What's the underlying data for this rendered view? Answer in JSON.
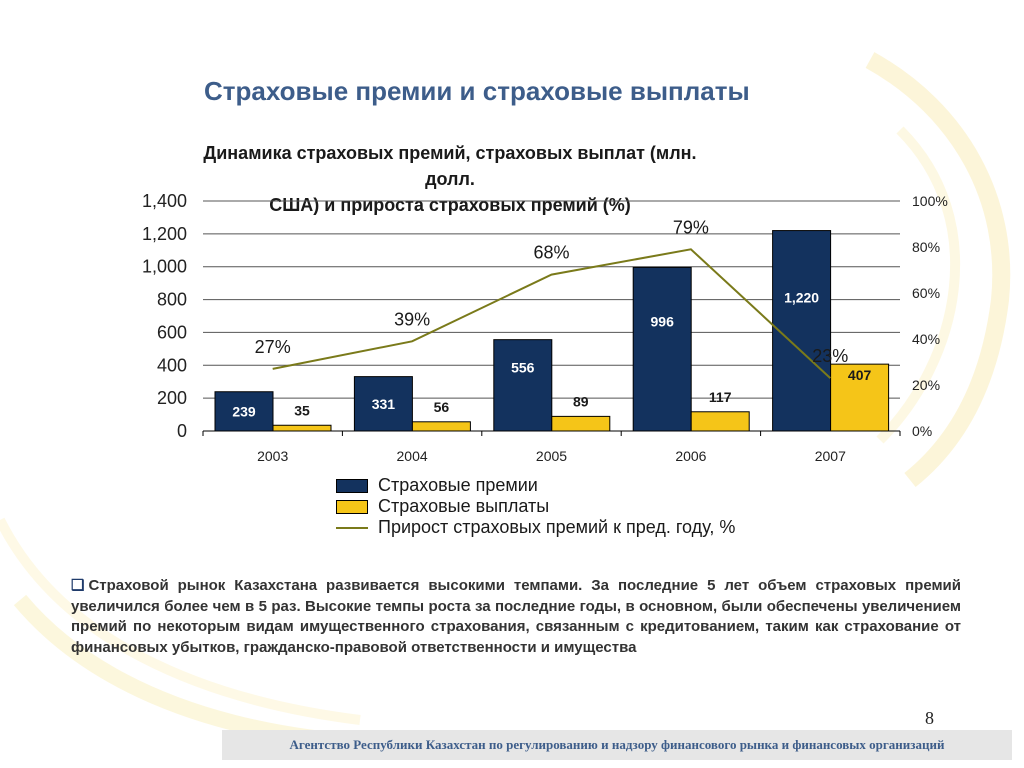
{
  "slide": {
    "title": "Страховые премии и страховые выплаты",
    "page_number": "8",
    "footer": "Агентство Республики Казахстан по регулированию и надзору финансового рынка и финансовых организаций",
    "note_bullet": "❑",
    "note": "Страховой рынок Казахстана развивается высокими темпами. За последние 5 лет объем страховых премий увеличился более чем в 5 раз. Высокие темпы роста за последние годы, в основном, были обеспечены увеличением премий по некоторым видам имущественного страхования, связанным с кредитованием, таким как страхование от финансовых убытков, гражданско-правовой ответственности и имущества"
  },
  "colors": {
    "premiums": "#13325e",
    "payouts": "#f5c518",
    "growth": "#7a7a1a",
    "title": "#3d5d8a"
  },
  "chart_data": {
    "type": "bar",
    "title": "Динамика страховых премий, страховых выплат (млн. долл. США) и прироста страховых премий (%)",
    "title_lines": [
      "Динамика страховых премий, страховых выплат (млн. долл.",
      "США) и прироста страховых премий (%)"
    ],
    "categories": [
      "2003",
      "2004",
      "2005",
      "2006",
      "2007"
    ],
    "series": [
      {
        "name": "Страховые премии",
        "type": "bar",
        "values": [
          239,
          331,
          556,
          996,
          1220
        ],
        "labels": [
          "239",
          "331",
          "556",
          "996",
          "1,220"
        ]
      },
      {
        "name": "Страховые выплаты",
        "type": "bar",
        "values": [
          35,
          56,
          89,
          117,
          407
        ],
        "labels": [
          "35",
          "56",
          "89",
          "117",
          "407"
        ]
      },
      {
        "name": "Прирост страховых премий к пред. году, %",
        "type": "line",
        "axis": "right",
        "values": [
          27,
          39,
          68,
          79,
          23
        ],
        "labels": [
          "27%",
          "39%",
          "68%",
          "79%",
          "23%"
        ]
      }
    ],
    "ylim": [
      0,
      1400
    ],
    "y_ticks": [
      "0",
      "200",
      "400",
      "600",
      "800",
      "1,000",
      "1,200",
      "1,400"
    ],
    "y2lim": [
      0,
      100
    ],
    "y2_ticks": [
      "0%",
      "20%",
      "40%",
      "60%",
      "80%",
      "100%"
    ],
    "grid": true,
    "legend": "bottom"
  }
}
